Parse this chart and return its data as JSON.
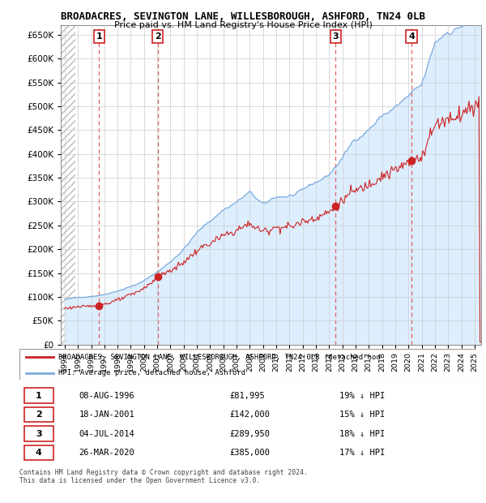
{
  "title1": "BROADACRES, SEVINGTON LANE, WILLESBOROUGH, ASHFORD, TN24 0LB",
  "title2": "Price paid vs. HM Land Registry's House Price Index (HPI)",
  "xlim_start": 1993.7,
  "xlim_end": 2025.5,
  "ylim_min": 0,
  "ylim_max": 670000,
  "yticks": [
    0,
    50000,
    100000,
    150000,
    200000,
    250000,
    300000,
    350000,
    400000,
    450000,
    500000,
    550000,
    600000,
    650000
  ],
  "ytick_labels": [
    "£0",
    "£50K",
    "£100K",
    "£150K",
    "£200K",
    "£250K",
    "£300K",
    "£350K",
    "£400K",
    "£450K",
    "£500K",
    "£550K",
    "£600K",
    "£650K"
  ],
  "hpi_color": "#7aaadd",
  "hpi_fill_color": "#ddeeff",
  "price_color": "#cc2222",
  "sale_marker_color": "#cc2222",
  "dashed_line_color": "#dd4444",
  "hatch_color": "#cccccc",
  "sales": [
    {
      "num": 1,
      "year": 1996.59,
      "price": 81995
    },
    {
      "num": 2,
      "year": 2001.04,
      "price": 142000
    },
    {
      "num": 3,
      "year": 2014.5,
      "price": 289950
    },
    {
      "num": 4,
      "year": 2020.23,
      "price": 385000
    }
  ],
  "legend_line1": "BROADACRES, SEVINGTON LANE, WILLESBOROUGH, ASHFORD, TN24 0LB (detached hou",
  "legend_line2": "HPI: Average price, detached house, Ashford",
  "table_rows": [
    {
      "num": 1,
      "date": "08-AUG-1996",
      "price": "£81,995",
      "hpi": "19% ↓ HPI"
    },
    {
      "num": 2,
      "date": "18-JAN-2001",
      "price": "£142,000",
      "hpi": "15% ↓ HPI"
    },
    {
      "num": 3,
      "date": "04-JUL-2014",
      "price": "£289,950",
      "hpi": "18% ↓ HPI"
    },
    {
      "num": 4,
      "date": "26-MAR-2020",
      "price": "£385,000",
      "hpi": "17% ↓ HPI"
    }
  ],
  "footnote": "Contains HM Land Registry data © Crown copyright and database right 2024.\nThis data is licensed under the Open Government Licence v3.0."
}
